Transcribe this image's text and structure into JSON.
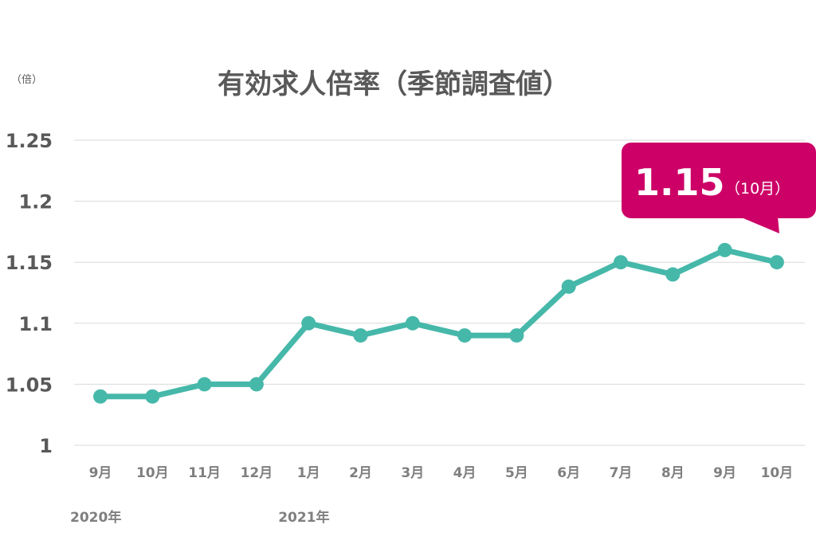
{
  "chart_data": {
    "type": "line",
    "title": "有効求人倍率（季節調査値）",
    "unit_label": "（倍）",
    "categories": [
      "9月",
      "10月",
      "11月",
      "12月",
      "1月",
      "2月",
      "3月",
      "4月",
      "5月",
      "6月",
      "7月",
      "8月",
      "9月",
      "10月"
    ],
    "year_labels": [
      {
        "label": "2020年",
        "category_index": 0
      },
      {
        "label": "2021年",
        "category_index": 4
      }
    ],
    "series": [
      {
        "values": [
          1.04,
          1.04,
          1.05,
          1.05,
          1.1,
          1.09,
          1.1,
          1.09,
          1.09,
          1.13,
          1.15,
          1.14,
          1.16,
          1.15
        ]
      }
    ],
    "ylim": [
      1,
      1.25
    ],
    "yticks": [
      "1.25",
      "1.2",
      "1.15",
      "1.1",
      "1.05",
      "1"
    ],
    "ytick_values": [
      1.25,
      1.2,
      1.15,
      1.1,
      1.05,
      1
    ],
    "grid": true,
    "callout": {
      "value": "1.15",
      "sub": "（10月）"
    },
    "colors": {
      "line": "#46b8aa",
      "callout": "#cc0066",
      "text": "#595959",
      "grid": "#d9d9d9"
    }
  }
}
